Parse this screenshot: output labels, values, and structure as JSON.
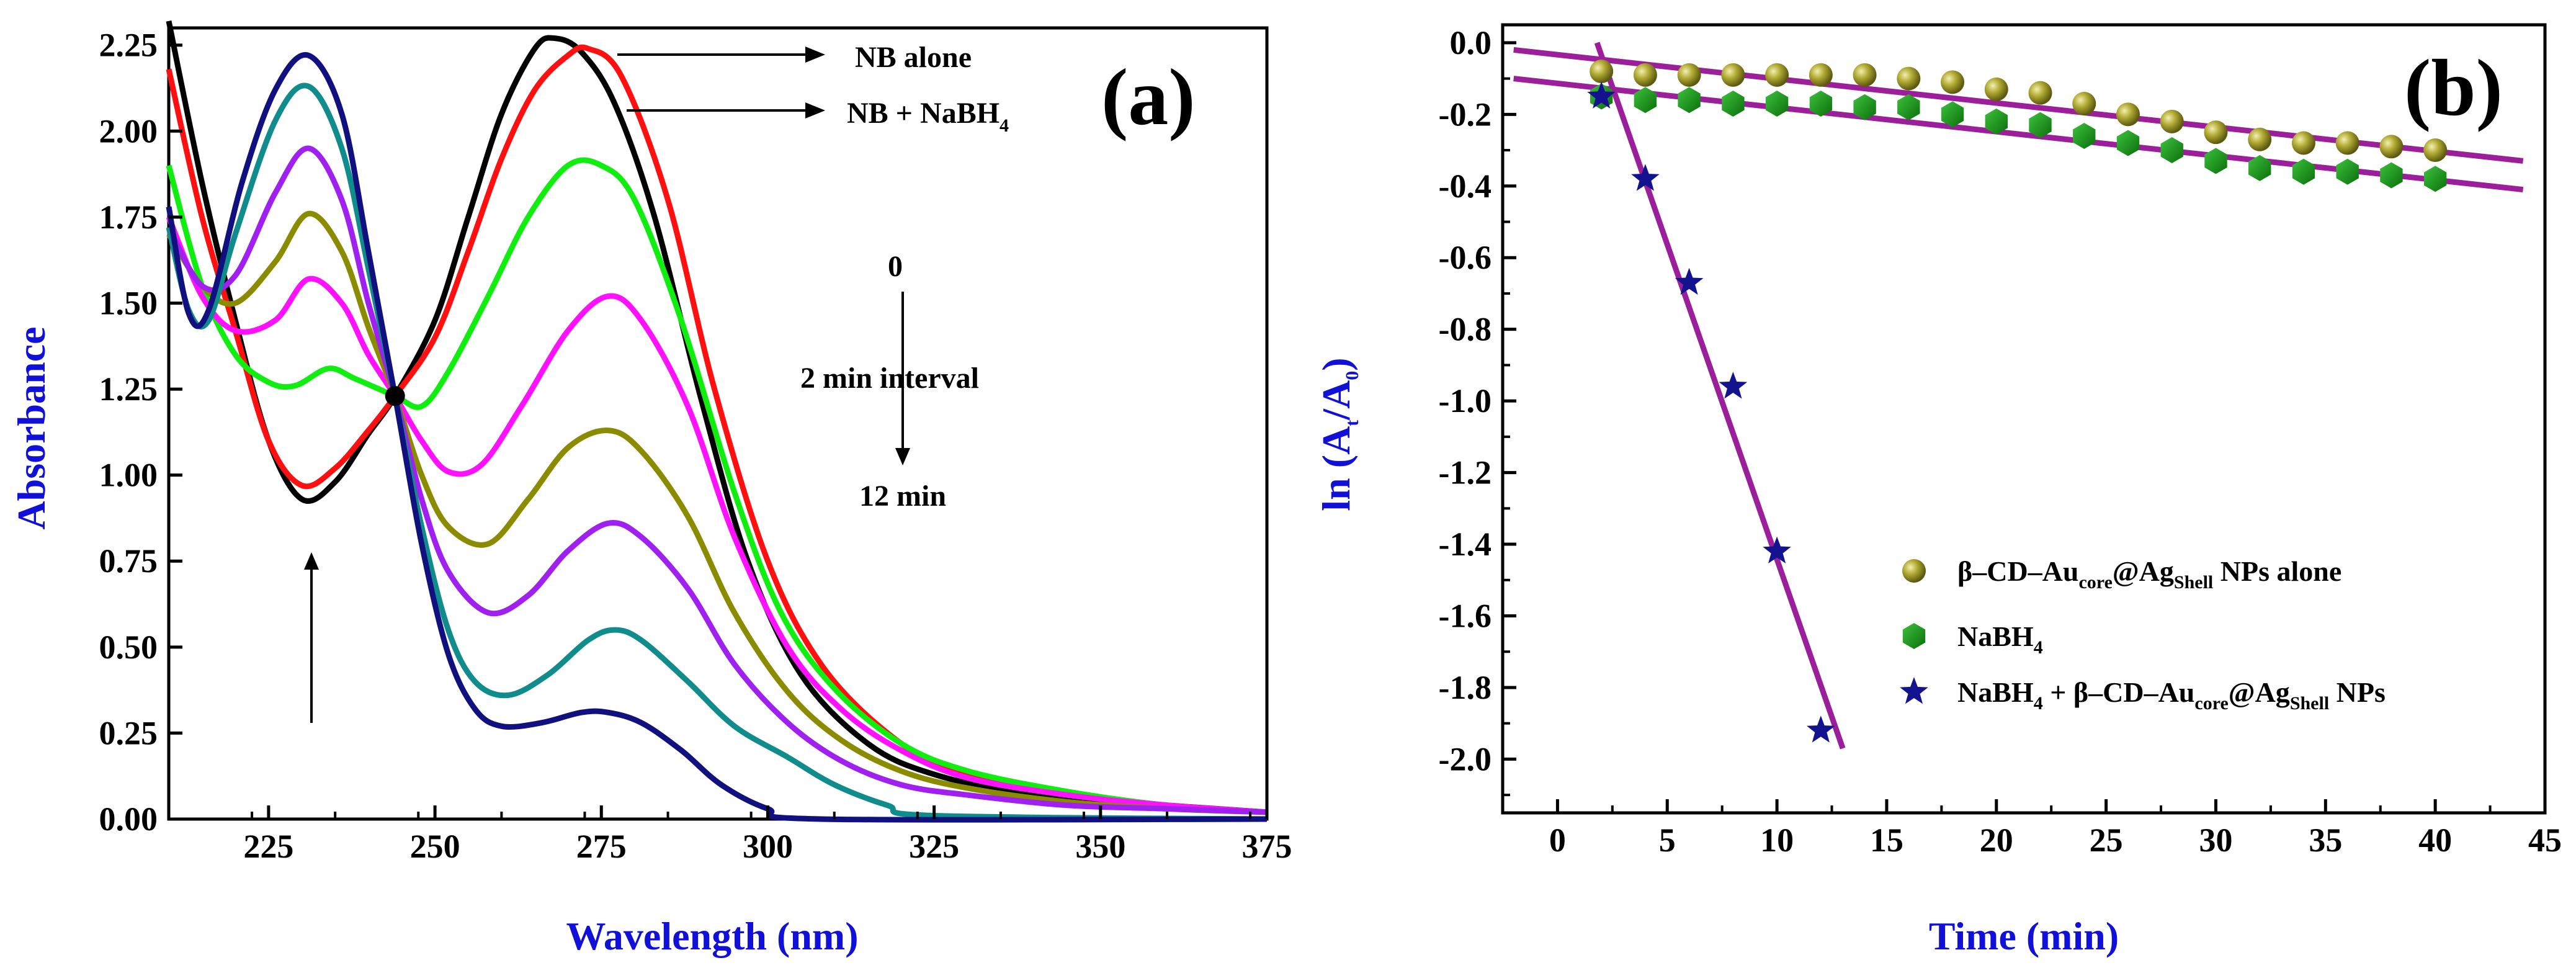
{
  "charts": [
    {
      "id": "a",
      "panel_label": "(a)",
      "type": "line",
      "xlabel": "Wavelength (nm)",
      "ylabel": "Absorbance",
      "xlim": [
        210,
        375
      ],
      "ylim": [
        0,
        2.3
      ],
      "x_ticks": [
        225,
        250,
        275,
        300,
        325,
        350,
        375
      ],
      "y_ticks": [
        0,
        0.25,
        0.5,
        0.75,
        1.0,
        1.25,
        1.5,
        1.75,
        2.0,
        2.25
      ],
      "y_tick_labels": [
        "0.00",
        "0.25",
        "0.50",
        "0.75",
        "1.00",
        "1.25",
        "1.50",
        "1.75",
        "2.00",
        "2.25"
      ],
      "annotations": {
        "nb_alone": "NB alone",
        "nb_nabh4_prefix": "NB + NaBH",
        "nb_nabh4_sub": "4",
        "time_start": "0",
        "interval": "2 min interval",
        "time_end": "12 min"
      },
      "series": [
        {
          "name": "NB alone",
          "color": "#000000",
          "points": [
            [
              210,
              2.32
            ],
            [
              215,
              1.85
            ],
            [
              220,
              1.45
            ],
            [
              225,
              1.1
            ],
            [
              230,
              0.93
            ],
            [
              235,
              0.98
            ],
            [
              240,
              1.12
            ],
            [
              244,
              1.23
            ],
            [
              250,
              1.45
            ],
            [
              255,
              1.75
            ],
            [
              260,
              2.05
            ],
            [
              265,
              2.24
            ],
            [
              268,
              2.27
            ],
            [
              272,
              2.23
            ],
            [
              277,
              2.08
            ],
            [
              283,
              1.75
            ],
            [
              290,
              1.22
            ],
            [
              297,
              0.75
            ],
            [
              305,
              0.42
            ],
            [
              315,
              0.22
            ],
            [
              325,
              0.13
            ],
            [
              340,
              0.07
            ],
            [
              360,
              0.04
            ],
            [
              375,
              0.02
            ]
          ]
        },
        {
          "name": "NB + NaBH4 (0 min)",
          "color": "#ff1010",
          "points": [
            [
              210,
              2.18
            ],
            [
              215,
              1.75
            ],
            [
              220,
              1.42
            ],
            [
              225,
              1.1
            ],
            [
              230,
              0.97
            ],
            [
              235,
              1.02
            ],
            [
              240,
              1.13
            ],
            [
              244,
              1.23
            ],
            [
              250,
              1.4
            ],
            [
              255,
              1.65
            ],
            [
              260,
              1.92
            ],
            [
              265,
              2.12
            ],
            [
              270,
              2.22
            ],
            [
              273,
              2.24
            ],
            [
              278,
              2.16
            ],
            [
              285,
              1.8
            ],
            [
              292,
              1.25
            ],
            [
              300,
              0.75
            ],
            [
              308,
              0.45
            ],
            [
              318,
              0.25
            ],
            [
              328,
              0.14
            ],
            [
              343,
              0.08
            ],
            [
              360,
              0.04
            ],
            [
              375,
              0.02
            ]
          ]
        },
        {
          "name": "2 min",
          "color": "#10ee10",
          "points": [
            [
              210,
              1.9
            ],
            [
              215,
              1.55
            ],
            [
              220,
              1.35
            ],
            [
              225,
              1.27
            ],
            [
              229,
              1.26
            ],
            [
              234,
              1.31
            ],
            [
              238,
              1.28
            ],
            [
              244,
              1.23
            ],
            [
              248,
              1.2
            ],
            [
              252,
              1.3
            ],
            [
              258,
              1.52
            ],
            [
              264,
              1.75
            ],
            [
              270,
              1.9
            ],
            [
              275,
              1.9
            ],
            [
              280,
              1.8
            ],
            [
              287,
              1.45
            ],
            [
              295,
              0.95
            ],
            [
              302,
              0.6
            ],
            [
              310,
              0.38
            ],
            [
              320,
              0.22
            ],
            [
              330,
              0.14
            ],
            [
              345,
              0.08
            ],
            [
              360,
              0.04
            ],
            [
              375,
              0.02
            ]
          ]
        },
        {
          "name": "4 min",
          "color": "#ff10ff",
          "points": [
            [
              210,
              1.75
            ],
            [
              215,
              1.52
            ],
            [
              220,
              1.42
            ],
            [
              226,
              1.45
            ],
            [
              231,
              1.57
            ],
            [
              236,
              1.5
            ],
            [
              240,
              1.35
            ],
            [
              244,
              1.23
            ],
            [
              248,
              1.1
            ],
            [
              252,
              1.01
            ],
            [
              257,
              1.03
            ],
            [
              263,
              1.2
            ],
            [
              270,
              1.42
            ],
            [
              276,
              1.52
            ],
            [
              281,
              1.45
            ],
            [
              288,
              1.2
            ],
            [
              295,
              0.82
            ],
            [
              303,
              0.5
            ],
            [
              311,
              0.32
            ],
            [
              320,
              0.2
            ],
            [
              330,
              0.12
            ],
            [
              345,
              0.07
            ],
            [
              360,
              0.04
            ],
            [
              375,
              0.02
            ]
          ]
        },
        {
          "name": "6 min",
          "color": "#8b8b00",
          "points": [
            [
              210,
              1.7
            ],
            [
              215,
              1.55
            ],
            [
              220,
              1.5
            ],
            [
              226,
              1.62
            ],
            [
              231,
              1.76
            ],
            [
              236,
              1.65
            ],
            [
              240,
              1.43
            ],
            [
              244,
              1.23
            ],
            [
              248,
              1.0
            ],
            [
              252,
              0.85
            ],
            [
              258,
              0.8
            ],
            [
              264,
              0.93
            ],
            [
              270,
              1.08
            ],
            [
              276,
              1.13
            ],
            [
              281,
              1.07
            ],
            [
              288,
              0.88
            ],
            [
              295,
              0.6
            ],
            [
              303,
              0.37
            ],
            [
              311,
              0.23
            ],
            [
              320,
              0.14
            ],
            [
              330,
              0.09
            ],
            [
              345,
              0.05
            ],
            [
              360,
              0.03
            ],
            [
              375,
              0.02
            ]
          ]
        },
        {
          "name": "8 min",
          "color": "#a020f0",
          "points": [
            [
              210,
              1.72
            ],
            [
              215,
              1.55
            ],
            [
              220,
              1.58
            ],
            [
              226,
              1.82
            ],
            [
              231,
              1.95
            ],
            [
              236,
              1.8
            ],
            [
              240,
              1.5
            ],
            [
              244,
              1.23
            ],
            [
              248,
              0.93
            ],
            [
              252,
              0.72
            ],
            [
              258,
              0.6
            ],
            [
              264,
              0.65
            ],
            [
              270,
              0.78
            ],
            [
              276,
              0.86
            ],
            [
              281,
              0.82
            ],
            [
              288,
              0.67
            ],
            [
              295,
              0.45
            ],
            [
              303,
              0.28
            ],
            [
              311,
              0.17
            ],
            [
              320,
              0.1
            ],
            [
              330,
              0.07
            ],
            [
              345,
              0.04
            ],
            [
              360,
              0.03
            ],
            [
              375,
              0.02
            ]
          ]
        },
        {
          "name": "10 min",
          "color": "#108c8c",
          "points": [
            [
              210,
              1.72
            ],
            [
              213,
              1.48
            ],
            [
              216,
              1.45
            ],
            [
              220,
              1.7
            ],
            [
              226,
              2.03
            ],
            [
              231,
              2.13
            ],
            [
              236,
              1.95
            ],
            [
              240,
              1.6
            ],
            [
              244,
              1.23
            ],
            [
              248,
              0.85
            ],
            [
              252,
              0.55
            ],
            [
              256,
              0.4
            ],
            [
              261,
              0.36
            ],
            [
              267,
              0.42
            ],
            [
              273,
              0.52
            ],
            [
              277,
              0.55
            ],
            [
              281,
              0.52
            ],
            [
              288,
              0.4
            ],
            [
              295,
              0.27
            ],
            [
              303,
              0.18
            ],
            [
              310,
              0.1
            ],
            [
              318,
              0.04
            ],
            [
              325,
              0.01
            ],
            [
              375,
              0.0
            ]
          ]
        },
        {
          "name": "12 min",
          "color": "#10107f",
          "points": [
            [
              210,
              1.78
            ],
            [
              213,
              1.47
            ],
            [
              216,
              1.48
            ],
            [
              221,
              1.85
            ],
            [
              226,
              2.12
            ],
            [
              231,
              2.22
            ],
            [
              236,
              2.05
            ],
            [
              240,
              1.65
            ],
            [
              244,
              1.23
            ],
            [
              248,
              0.8
            ],
            [
              252,
              0.48
            ],
            [
              256,
              0.32
            ],
            [
              260,
              0.27
            ],
            [
              266,
              0.28
            ],
            [
              272,
              0.31
            ],
            [
              276,
              0.31
            ],
            [
              281,
              0.28
            ],
            [
              287,
              0.2
            ],
            [
              293,
              0.1
            ],
            [
              300,
              0.03
            ],
            [
              308,
              0.0
            ],
            [
              375,
              0.0
            ]
          ]
        }
      ],
      "markers": {
        "isosbestic_point": [
          244,
          1.23
        ]
      }
    },
    {
      "id": "b",
      "panel_label": "(b)",
      "type": "scatter",
      "xlabel": "Time (min)",
      "ylabel_main": "ln (A",
      "ylabel_sub_t": "t",
      "ylabel_mid": "/A",
      "ylabel_sub_0": "0",
      "ylabel_end": ")",
      "xlim": [
        -2.5,
        45
      ],
      "ylim": [
        -2.15,
        0.05
      ],
      "x_ticks": [
        0,
        5,
        10,
        15,
        20,
        25,
        30,
        35,
        40,
        45
      ],
      "y_ticks": [
        0.0,
        -0.2,
        -0.4,
        -0.6,
        -0.8,
        -1.0,
        -1.2,
        -1.4,
        -1.6,
        -1.8,
        -2.0
      ],
      "y_tick_labels": [
        "0.0",
        "-0.2",
        "-0.4",
        "-0.6",
        "-0.8",
        "-1.0",
        "-1.2",
        "-1.4",
        "-1.6",
        "-1.8",
        "-2.0"
      ],
      "fit_line_color": "#9b1f9b",
      "series": [
        {
          "name": "β–CD–Au@Ag NPs alone",
          "marker": "sphere",
          "color": "#a09a28",
          "x": [
            2,
            4,
            6,
            8,
            10,
            12,
            14,
            16,
            18,
            20,
            22,
            24,
            26,
            28,
            30,
            32,
            34,
            36,
            38,
            40
          ],
          "y": [
            -0.08,
            -0.09,
            -0.09,
            -0.09,
            -0.09,
            -0.09,
            -0.09,
            -0.1,
            -0.11,
            -0.13,
            -0.14,
            -0.17,
            -0.2,
            -0.22,
            -0.25,
            -0.27,
            -0.28,
            -0.28,
            -0.29,
            -0.3
          ],
          "fit": [
            [
              -2,
              -0.02
            ],
            [
              44,
              -0.33
            ]
          ]
        },
        {
          "name": "NaBH4",
          "marker": "hexagon",
          "color": "#139a13",
          "x": [
            2,
            4,
            6,
            8,
            10,
            12,
            14,
            16,
            18,
            20,
            22,
            24,
            26,
            28,
            30,
            32,
            34,
            36,
            38,
            40
          ],
          "y": [
            -0.15,
            -0.16,
            -0.16,
            -0.17,
            -0.17,
            -0.17,
            -0.18,
            -0.18,
            -0.2,
            -0.22,
            -0.23,
            -0.26,
            -0.28,
            -0.3,
            -0.33,
            -0.35,
            -0.36,
            -0.36,
            -0.37,
            -0.38
          ],
          "fit": [
            [
              -2,
              -0.1
            ],
            [
              44,
              -0.41
            ]
          ]
        },
        {
          "name": "NaBH4 + β–CD–Au@Ag NPs",
          "marker": "star",
          "color": "#13138f",
          "x": [
            2,
            4,
            6,
            8,
            10,
            12
          ],
          "y": [
            -0.15,
            -0.38,
            -0.67,
            -0.96,
            -1.42,
            -1.92
          ],
          "fit": [
            [
              1.8,
              0.0
            ],
            [
              13,
              -1.97
            ]
          ]
        }
      ],
      "legend": {
        "position": "lower-right",
        "items": [
          {
            "marker": "sphere",
            "parts": [
              {
                "t": "β–CD–Au",
                "s": false
              },
              {
                "t": "core",
                "s": true
              },
              {
                "t": "@Ag",
                "s": false
              },
              {
                "t": "Shell",
                "s": true
              },
              {
                "t": " NPs alone",
                "s": false
              }
            ]
          },
          {
            "marker": "hexagon",
            "parts": [
              {
                "t": "NaBH",
                "s": false
              },
              {
                "t": "4",
                "s": true
              }
            ]
          },
          {
            "marker": "star",
            "parts": [
              {
                "t": "NaBH",
                "s": false
              },
              {
                "t": "4",
                "s": true
              },
              {
                "t": " + β–CD–Au",
                "s": false
              },
              {
                "t": "core",
                "s": true
              },
              {
                "t": "@Ag",
                "s": false
              },
              {
                "t": "Shell",
                "s": true
              },
              {
                "t": " NPs",
                "s": false
              }
            ]
          }
        ]
      }
    }
  ]
}
